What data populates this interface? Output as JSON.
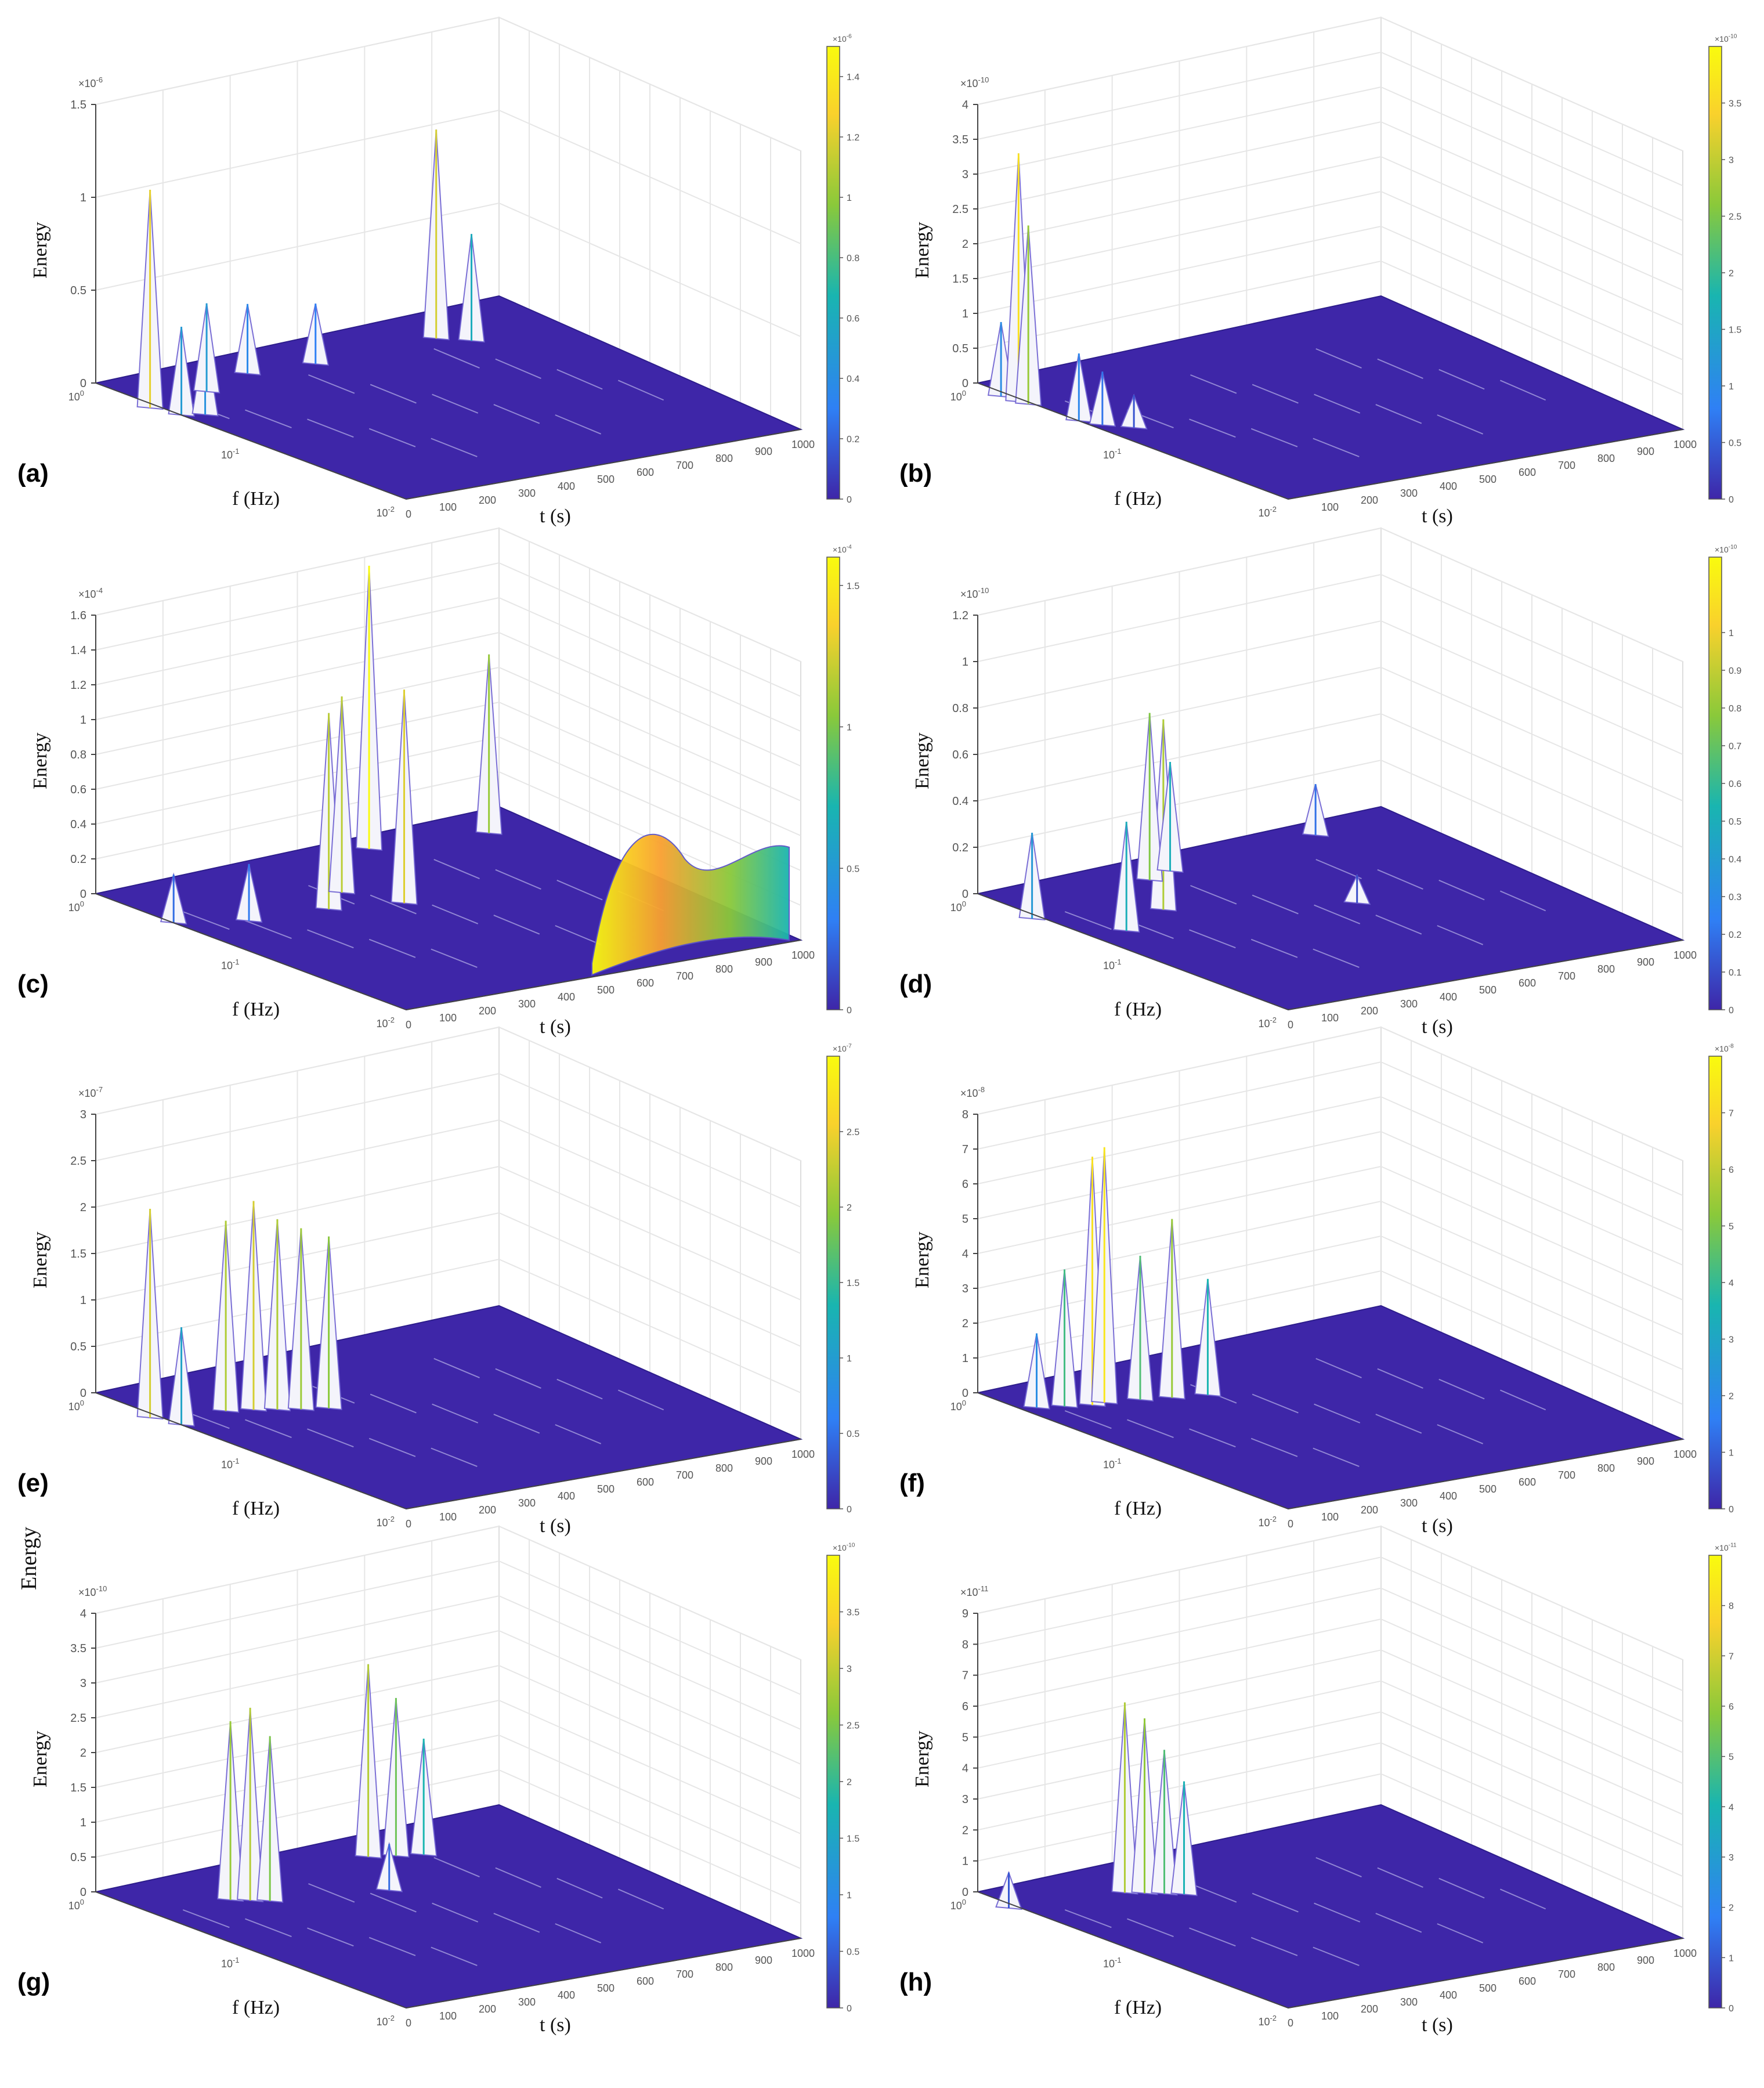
{
  "figure": {
    "stray_label": "Energy"
  },
  "chart_data": [
    {
      "type": "surface3d",
      "panel_label": "(a)",
      "zlabel": "Energy",
      "xlabel": "t (s)",
      "ylabel": "f (Hz)",
      "x_ticks": [
        "0",
        "100",
        "200",
        "300",
        "400",
        "500",
        "600",
        "700",
        "800",
        "900",
        "1000"
      ],
      "y_ticks": [
        "10^0",
        "10^-1",
        "10^-2"
      ],
      "z_ticks": [
        "0",
        "0.5",
        "1",
        "1.5"
      ],
      "z_exponent": "×10^-6",
      "zlim": [
        0,
        1.5e-06
      ],
      "colorbar_ticks": [
        "0",
        "0.2",
        "0.4",
        "0.6",
        "0.8",
        "1",
        "1.2",
        "1.4"
      ],
      "colorbar_exponent": "×10^-6",
      "colormap": [
        "#3e26a8",
        "#2f80f5",
        "#19b5b0",
        "#8ac93a",
        "#f9d12c",
        "#f9fb0e"
      ],
      "peaks": [
        {
          "t": 0,
          "f_log10": -0.35,
          "energy": 1.15e-06
        },
        {
          "t": 20,
          "f_log10": -0.5,
          "energy": 4.5e-07
        },
        {
          "t": 60,
          "f_log10": -0.55,
          "energy": 4e-07
        },
        {
          "t": 160,
          "f_log10": -0.3,
          "energy": 4.5e-07
        },
        {
          "t": 300,
          "f_log10": -0.2,
          "energy": 3.5e-07
        },
        {
          "t": 450,
          "f_log10": -0.25,
          "energy": 3e-07
        },
        {
          "t": 750,
          "f_log10": -0.25,
          "energy": 1.1e-06
        },
        {
          "t": 800,
          "f_log10": -0.35,
          "energy": 5.5e-07
        }
      ]
    },
    {
      "type": "surface3d",
      "panel_label": "(b)",
      "zlabel": "Energy",
      "xlabel": "t (s)",
      "ylabel": "f (Hz)",
      "x_ticks": [
        "100",
        "200",
        "300",
        "400",
        "500",
        "600",
        "700",
        "800",
        "900",
        "1000"
      ],
      "y_ticks": [
        "10^0",
        "10^-1",
        "10^-2"
      ],
      "z_ticks": [
        "0",
        "0.5",
        "1",
        "1.5",
        "2",
        "2.5",
        "3",
        "3.5",
        "4"
      ],
      "z_exponent": "×10^-10",
      "zlim": [
        0,
        4e-10
      ],
      "colorbar_ticks": [
        "0",
        "0.5",
        "1",
        "1.5",
        "2",
        "2.5",
        "3",
        "3.5"
      ],
      "colorbar_exponent": "×10^-10",
      "colormap": [
        "#3e26a8",
        "#2f80f5",
        "#19b5b0",
        "#8ac93a",
        "#f9d12c",
        "#f9fb0e"
      ],
      "peaks": [
        {
          "t": 0,
          "f_log10": -0.15,
          "energy": 1e-10
        },
        {
          "t": 5,
          "f_log10": -0.25,
          "energy": 3.5e-10
        },
        {
          "t": 10,
          "f_log10": -0.3,
          "energy": 2.5e-10
        },
        {
          "t": 20,
          "f_log10": -0.6,
          "energy": 9e-11
        },
        {
          "t": 40,
          "f_log10": -0.7,
          "energy": 7e-11
        },
        {
          "t": 80,
          "f_log10": -0.8,
          "energy": 4e-11
        }
      ]
    },
    {
      "type": "surface3d",
      "panel_label": "(c)",
      "zlabel": "Energy",
      "xlabel": "t (s)",
      "ylabel": "f (Hz)",
      "x_ticks": [
        "0",
        "100",
        "200",
        "300",
        "400",
        "500",
        "600",
        "700",
        "800",
        "900",
        "1000"
      ],
      "y_ticks": [
        "10^0",
        "10^-1",
        "10^-2"
      ],
      "z_ticks": [
        "0",
        "0.2",
        "0.4",
        "0.6",
        "0.8",
        "1",
        "1.2",
        "1.4",
        "1.6"
      ],
      "z_exponent": "×10^-4",
      "zlim": [
        0,
        0.00016
      ],
      "colorbar_ticks": [
        "0",
        "0.5",
        "1",
        "1.5"
      ],
      "colorbar_exponent": "×10^-4",
      "colormap": [
        "#3e26a8",
        "#2f80f5",
        "#19b5b0",
        "#8ac93a",
        "#f9d12c",
        "#f9fb0e"
      ],
      "peaks": [
        {
          "t": 20,
          "f_log10": -0.45,
          "energy": 2.5e-05
        },
        {
          "t": 150,
          "f_log10": -0.6,
          "energy": 3e-05
        },
        {
          "t": 330,
          "f_log10": -0.65,
          "energy": 0.00011
        },
        {
          "t": 420,
          "f_log10": -0.5,
          "energy": 0.00011
        },
        {
          "t": 480,
          "f_log10": -0.75,
          "energy": 0.00012
        },
        {
          "t": 640,
          "f_log10": -0.1,
          "energy": 0.00016
        },
        {
          "t": 900,
          "f_log10": -0.2,
          "energy": 0.0001
        }
      ]
    },
    {
      "type": "surface3d",
      "panel_label": "(d)",
      "zlabel": "Energy",
      "xlabel": "t (s)",
      "ylabel": "f (Hz)",
      "x_ticks": [
        "0",
        "100",
        "200",
        "300",
        "400",
        "500",
        "600",
        "700",
        "800",
        "900",
        "1000"
      ],
      "y_ticks": [
        "10^0",
        "10^-1",
        "10^-2"
      ],
      "z_ticks": [
        "0",
        "0.2",
        "0.4",
        "0.6",
        "0.8",
        "1",
        "1.2"
      ],
      "z_exponent": "×10^-10",
      "zlim": [
        0,
        1.2e-10
      ],
      "colorbar_ticks": [
        "0",
        "0.1",
        "0.2",
        "0.3",
        "0.4",
        "0.5",
        "0.6",
        "0.7",
        "0.8",
        "0.9",
        "1"
      ],
      "colorbar_exponent": "×10^-10",
      "colormap": [
        "#3e26a8",
        "#2f80f5",
        "#19b5b0",
        "#8ac93a",
        "#f9d12c",
        "#f9fb0e"
      ],
      "peaks": [
        {
          "t": 0,
          "f_log10": -0.35,
          "energy": 3.5e-11
        },
        {
          "t": 100,
          "f_log10": -0.7,
          "energy": 4.5e-11
        },
        {
          "t": 250,
          "f_log10": -0.55,
          "energy": 8e-11
        },
        {
          "t": 350,
          "f_log10": -0.2,
          "energy": 7e-11
        },
        {
          "t": 420,
          "f_log10": -0.15,
          "energy": 4.5e-11
        },
        {
          "t": 600,
          "f_log10": -0.9,
          "energy": 1e-11
        },
        {
          "t": 800,
          "f_log10": -0.1,
          "energy": 2e-11
        }
      ]
    },
    {
      "type": "surface3d",
      "panel_label": "(e)",
      "zlabel": "Energy",
      "xlabel": "t (s)",
      "ylabel": "f (Hz)",
      "x_ticks": [
        "0",
        "100",
        "200",
        "300",
        "400",
        "500",
        "600",
        "700",
        "800",
        "900",
        "1000"
      ],
      "y_ticks": [
        "10^0",
        "10^-1",
        "10^-2"
      ],
      "z_ticks": [
        "0",
        "0.5",
        "1",
        "1.5",
        "2",
        "2.5",
        "3"
      ],
      "z_exponent": "×10^-7",
      "zlim": [
        0,
        3e-07
      ],
      "colorbar_ticks": [
        "0",
        "0.5",
        "1",
        "1.5",
        "2",
        "2.5"
      ],
      "colorbar_exponent": "×10^-7",
      "colormap": [
        "#3e26a8",
        "#2f80f5",
        "#19b5b0",
        "#8ac93a",
        "#f9d12c",
        "#f9fb0e"
      ],
      "peaks": [
        {
          "t": 0,
          "f_log10": -0.35,
          "energy": 2.2e-07
        },
        {
          "t": 20,
          "f_log10": -0.5,
          "energy": 1e-07
        },
        {
          "t": 150,
          "f_log10": -0.45,
          "energy": 2e-07
        },
        {
          "t": 200,
          "f_log10": -0.5,
          "energy": 2.2e-07
        },
        {
          "t": 240,
          "f_log10": -0.55,
          "energy": 2e-07
        },
        {
          "t": 280,
          "f_log10": -0.6,
          "energy": 1.9e-07
        },
        {
          "t": 330,
          "f_log10": -0.65,
          "energy": 1.8e-07
        }
      ]
    },
    {
      "type": "surface3d",
      "panel_label": "(f)",
      "zlabel": "Energy",
      "xlabel": "t (s)",
      "ylabel": "f (Hz)",
      "x_ticks": [
        "0",
        "100",
        "200",
        "300",
        "400",
        "500",
        "600",
        "700",
        "800",
        "900",
        "1000"
      ],
      "y_ticks": [
        "10^0",
        "10^-1",
        "10^-2"
      ],
      "z_ticks": [
        "0",
        "1",
        "2",
        "3",
        "4",
        "5",
        "6",
        "7",
        "8"
      ],
      "z_exponent": "×10^-8",
      "zlim": [
        0,
        8e-08
      ],
      "colorbar_ticks": [
        "0",
        "1",
        "2",
        "3",
        "4",
        "5",
        "6",
        "7"
      ],
      "colorbar_exponent": "×10^-8",
      "colormap": [
        "#3e26a8",
        "#2f80f5",
        "#19b5b0",
        "#8ac93a",
        "#f9d12c",
        "#f9fb0e"
      ],
      "peaks": [
        {
          "t": 50,
          "f_log10": -0.25,
          "energy": 2e-08
        },
        {
          "t": 100,
          "f_log10": -0.3,
          "energy": 3.8e-08
        },
        {
          "t": 150,
          "f_log10": -0.35,
          "energy": 7e-08
        },
        {
          "t": 180,
          "f_log10": -0.35,
          "energy": 7.2e-08
        },
        {
          "t": 250,
          "f_log10": -0.4,
          "energy": 4e-08
        },
        {
          "t": 310,
          "f_log10": -0.45,
          "energy": 5e-08
        },
        {
          "t": 380,
          "f_log10": -0.5,
          "energy": 3.2e-08
        }
      ]
    },
    {
      "type": "surface3d",
      "panel_label": "(g)",
      "zlabel": "Energy",
      "xlabel": "t (s)",
      "ylabel": "f (Hz)",
      "x_ticks": [
        "0",
        "100",
        "200",
        "300",
        "400",
        "500",
        "600",
        "700",
        "800",
        "900",
        "1000"
      ],
      "y_ticks": [
        "10^0",
        "10^-1",
        "10^-2"
      ],
      "z_ticks": [
        "0",
        "0.5",
        "1",
        "1.5",
        "2",
        "2.5",
        "3",
        "3.5",
        "4"
      ],
      "z_exponent": "×10^-10",
      "zlim": [
        0,
        4e-10
      ],
      "colorbar_ticks": [
        "0",
        "0.5",
        "1",
        "1.5",
        "2",
        "2.5",
        "3",
        "3.5"
      ],
      "colorbar_exponent": "×10^-10",
      "colormap": [
        "#3e26a8",
        "#2f80f5",
        "#19b5b0",
        "#8ac93a",
        "#f9d12c",
        "#f9fb0e"
      ],
      "peaks": [
        {
          "t": 200,
          "f_log10": -0.35,
          "energy": 2.5e-10
        },
        {
          "t": 230,
          "f_log10": -0.4,
          "energy": 2.7e-10
        },
        {
          "t": 260,
          "f_log10": -0.45,
          "energy": 2.3e-10
        },
        {
          "t": 600,
          "f_log10": -0.2,
          "energy": 2.7e-10
        },
        {
          "t": 650,
          "f_log10": -0.25,
          "energy": 2.2e-10
        },
        {
          "t": 700,
          "f_log10": -0.3,
          "energy": 1.6e-10
        },
        {
          "t": 500,
          "f_log10": -0.6,
          "energy": 6e-11
        }
      ]
    },
    {
      "type": "surface3d",
      "panel_label": "(h)",
      "zlabel": "Energy",
      "xlabel": "t (s)",
      "ylabel": "f (Hz)",
      "x_ticks": [
        "0",
        "100",
        "200",
        "300",
        "400",
        "500",
        "600",
        "700",
        "800",
        "900",
        "1000"
      ],
      "y_ticks": [
        "10^0",
        "10^-1",
        "10^-2"
      ],
      "z_ticks": [
        "0",
        "1",
        "2",
        "3",
        "4",
        "5",
        "6",
        "7",
        "8",
        "9"
      ],
      "z_exponent": "×10^-11",
      "zlim": [
        0,
        9e-11
      ],
      "colorbar_ticks": [
        "0",
        "1",
        "2",
        "3",
        "4",
        "5",
        "6",
        "7",
        "8"
      ],
      "colorbar_exponent": "×10^-11",
      "colormap": [
        "#3e26a8",
        "#2f80f5",
        "#19b5b0",
        "#8ac93a",
        "#f9d12c",
        "#f9fb0e"
      ],
      "peaks": [
        {
          "t": 0,
          "f_log10": -0.2,
          "energy": 1e-11
        },
        {
          "t": 250,
          "f_log10": -0.3,
          "energy": 6e-11
        },
        {
          "t": 280,
          "f_log10": -0.35,
          "energy": 5.5e-11
        },
        {
          "t": 310,
          "f_log10": -0.4,
          "energy": 4.5e-11
        },
        {
          "t": 340,
          "f_log10": -0.45,
          "energy": 3.5e-11
        }
      ]
    }
  ]
}
